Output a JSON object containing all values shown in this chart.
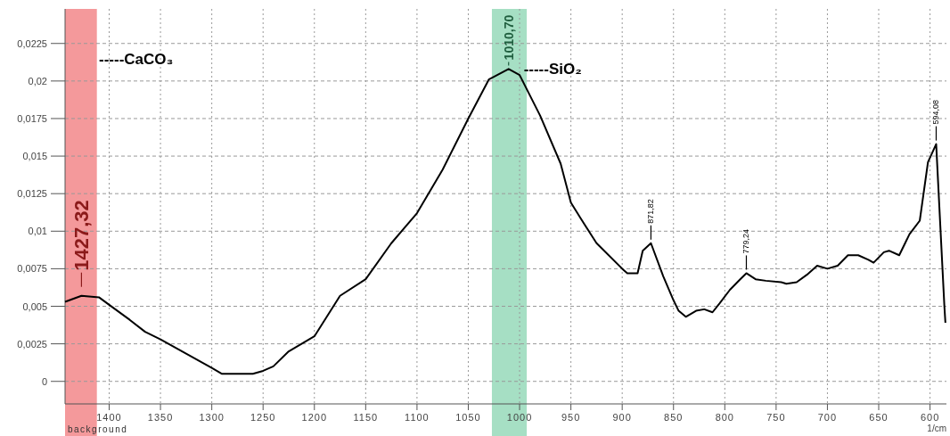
{
  "chart_data": {
    "type": "line",
    "xlabel": "1/cm",
    "x": [
      1443,
      1427,
      1410,
      1400,
      1380,
      1365,
      1350,
      1300,
      1290,
      1260,
      1250,
      1240,
      1225,
      1200,
      1175,
      1150,
      1125,
      1100,
      1075,
      1050,
      1030,
      1010.7,
      1000,
      980,
      960,
      950,
      940,
      925,
      900,
      895,
      885,
      880,
      872,
      860,
      850,
      845,
      838,
      828,
      820,
      812,
      805,
      795,
      785,
      779,
      770,
      760,
      745,
      740,
      730,
      720,
      710,
      700,
      690,
      680,
      670,
      660,
      655,
      645,
      640,
      630,
      620,
      610,
      602,
      594,
      586,
      585
    ],
    "series": [
      {
        "color": "#000000",
        "values": [
          0.0053,
          0.0057,
          0.0056,
          0.0051,
          0.0041,
          0.0033,
          0.0028,
          0.0009,
          0.0005,
          0.0005,
          0.0007,
          0.001,
          0.002,
          0.003,
          0.0057,
          0.0068,
          0.0092,
          0.0112,
          0.0141,
          0.0175,
          0.0201,
          0.0208,
          0.0204,
          0.0177,
          0.0145,
          0.0119,
          0.0108,
          0.0092,
          0.0075,
          0.0072,
          0.0072,
          0.0087,
          0.0092,
          0.007,
          0.0054,
          0.0047,
          0.0043,
          0.0047,
          0.0048,
          0.0046,
          0.0052,
          0.0061,
          0.0068,
          0.0072,
          0.0068,
          0.0067,
          0.0066,
          0.0065,
          0.0066,
          0.0071,
          0.0077,
          0.0075,
          0.0077,
          0.0084,
          0.0084,
          0.0081,
          0.0079,
          0.0086,
          0.0087,
          0.0084,
          0.0098,
          0.0107,
          0.0146,
          0.0158,
          0.005,
          0.0039
        ]
      }
    ],
    "xlim": [
      1443,
      584
    ],
    "xticks": [
      1400,
      1350,
      1300,
      1250,
      1200,
      1150,
      1100,
      1050,
      1000,
      950,
      900,
      850,
      800,
      750,
      700,
      650,
      600
    ],
    "ylim": [
      -0.0015,
      0.0248
    ],
    "yticks": [
      {
        "value": 0,
        "label": "0"
      },
      {
        "value": 0.0025,
        "label": "0,0025"
      },
      {
        "value": 0.005,
        "label": "0,005"
      },
      {
        "value": 0.0075,
        "label": "0,0075"
      },
      {
        "value": 0.01,
        "label": "0,01"
      },
      {
        "value": 0.0125,
        "label": "0,0125"
      },
      {
        "value": 0.015,
        "label": "0,015"
      },
      {
        "value": 0.0175,
        "label": "0,0175"
      },
      {
        "value": 0.02,
        "label": "0,02"
      },
      {
        "value": 0.0225,
        "label": "0,0225"
      }
    ],
    "grid": true,
    "bands": [
      {
        "axis": "x",
        "from": 1443,
        "to": 1412,
        "color": "#f4999b"
      },
      {
        "axis": "x",
        "from": 1027,
        "to": 993,
        "color": "#a6dfc4"
      }
    ],
    "annotations": [
      {
        "text": "1427,32",
        "x": 1427,
        "y": 0.0057
      },
      {
        "text": "1010,70",
        "x": 1010.7,
        "y": 0.0208
      },
      {
        "text": "871,82",
        "x": 872,
        "y": 0.0092
      },
      {
        "text": "779,24",
        "x": 779,
        "y": 0.0072
      },
      {
        "text": "594,08",
        "x": 594,
        "y": 0.0158
      },
      {
        "text": "-----CaCO₃",
        "x": 1410,
        "y": 0.0215
      },
      {
        "text": "-----SiO₂",
        "x": 996,
        "y": 0.0208
      },
      "background"
    ]
  }
}
